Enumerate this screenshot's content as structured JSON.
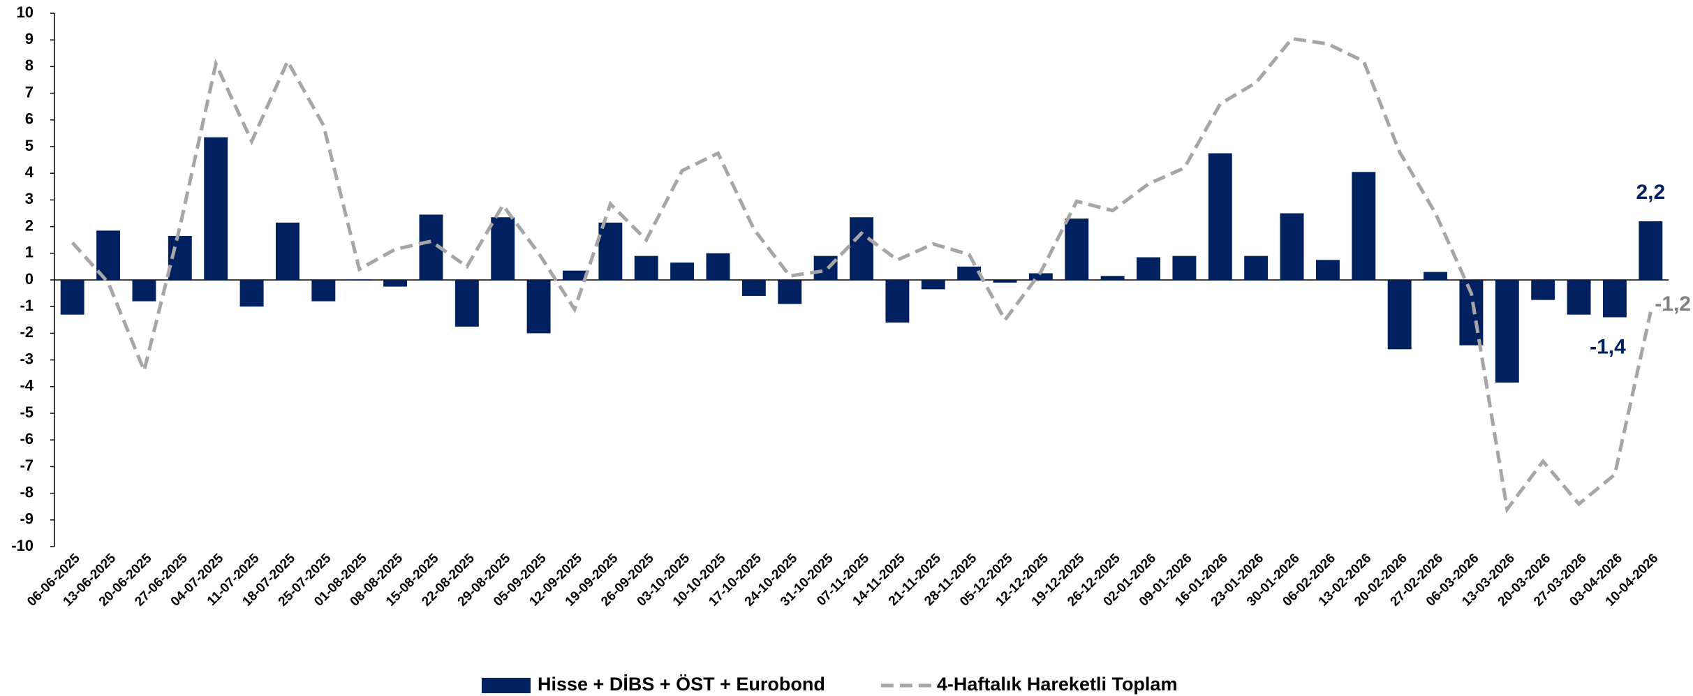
{
  "chart_data": {
    "type": "bar",
    "categories": [
      "06-06-2025",
      "13-06-2025",
      "20-06-2025",
      "27-06-2025",
      "04-07-2025",
      "11-07-2025",
      "18-07-2025",
      "25-07-2025",
      "01-08-2025",
      "08-08-2025",
      "15-08-2025",
      "22-08-2025",
      "29-08-2025",
      "05-09-2025",
      "12-09-2025",
      "19-09-2025",
      "26-09-2025",
      "03-10-2025",
      "10-10-2025",
      "17-10-2025",
      "24-10-2025",
      "31-10-2025",
      "07-11-2025",
      "14-11-2025",
      "21-11-2025",
      "28-11-2025",
      "05-12-2025",
      "12-12-2025",
      "19-12-2025",
      "26-12-2025",
      "02-01-2026",
      "09-01-2026",
      "16-01-2026",
      "23-01-2026",
      "30-01-2026",
      "06-02-2026",
      "13-02-2026",
      "20-02-2026",
      "27-02-2026",
      "06-03-2026",
      "13-03-2026",
      "20-03-2026",
      "27-03-2026",
      "03-04-2026",
      "10-04-2026"
    ],
    "series": [
      {
        "name": "Hisse + DİBS + ÖST + Eurobond",
        "type": "bar",
        "color": "#002060",
        "values": [
          -1.3,
          1.85,
          -0.8,
          1.65,
          5.35,
          -1.0,
          2.15,
          -0.8,
          0.02,
          -0.25,
          2.45,
          -1.75,
          2.35,
          -2.0,
          0.35,
          2.15,
          0.9,
          0.65,
          1.0,
          -0.6,
          -0.9,
          0.9,
          2.35,
          -1.6,
          -0.35,
          0.5,
          -0.1,
          0.25,
          2.3,
          0.15,
          0.85,
          0.9,
          4.75,
          0.9,
          2.5,
          0.75,
          4.05,
          -2.6,
          0.3,
          -2.45,
          -3.85,
          -0.75,
          -1.3,
          -1.4,
          2.2
        ],
        "value_labels": [
          null,
          null,
          null,
          null,
          null,
          null,
          null,
          null,
          null,
          null,
          null,
          null,
          null,
          null,
          null,
          null,
          null,
          null,
          null,
          null,
          null,
          null,
          null,
          null,
          null,
          null,
          null,
          null,
          null,
          null,
          null,
          null,
          null,
          null,
          null,
          null,
          null,
          null,
          null,
          null,
          null,
          null,
          null,
          "-1,4",
          "2,2"
        ]
      },
      {
        "name": "4-Haftalık Hareketli Toplam",
        "type": "line",
        "color": "#a6a6a6",
        "dashed": true,
        "values": [
          1.4,
          -0.1,
          -3.4,
          2.0,
          8.1,
          5.2,
          8.2,
          5.8,
          0.4,
          1.15,
          1.45,
          0.5,
          2.8,
          1.0,
          -1.1,
          2.85,
          1.5,
          4.1,
          4.75,
          1.9,
          0.15,
          0.35,
          1.75,
          0.75,
          1.35,
          0.95,
          -1.5,
          0.3,
          2.95,
          2.6,
          3.6,
          4.2,
          6.6,
          7.4,
          9.05,
          8.85,
          8.2,
          4.8,
          2.5,
          -0.5,
          -8.6,
          -6.8,
          -8.4,
          -7.3,
          -1.2
        ],
        "value_labels": [
          null,
          null,
          null,
          null,
          null,
          null,
          null,
          null,
          null,
          null,
          null,
          null,
          null,
          null,
          null,
          null,
          null,
          null,
          null,
          null,
          null,
          null,
          null,
          null,
          null,
          null,
          null,
          null,
          null,
          null,
          null,
          null,
          null,
          null,
          null,
          null,
          null,
          null,
          null,
          null,
          null,
          null,
          null,
          null,
          "-1,2"
        ]
      }
    ],
    "ylim": [
      -10,
      10
    ],
    "yticks": [
      -10,
      -9,
      -8,
      -7,
      -6,
      -5,
      -4,
      -3,
      -2,
      -1,
      0,
      1,
      2,
      3,
      4,
      5,
      6,
      7,
      8,
      9,
      10
    ],
    "grid": false,
    "legend": "bottom"
  }
}
